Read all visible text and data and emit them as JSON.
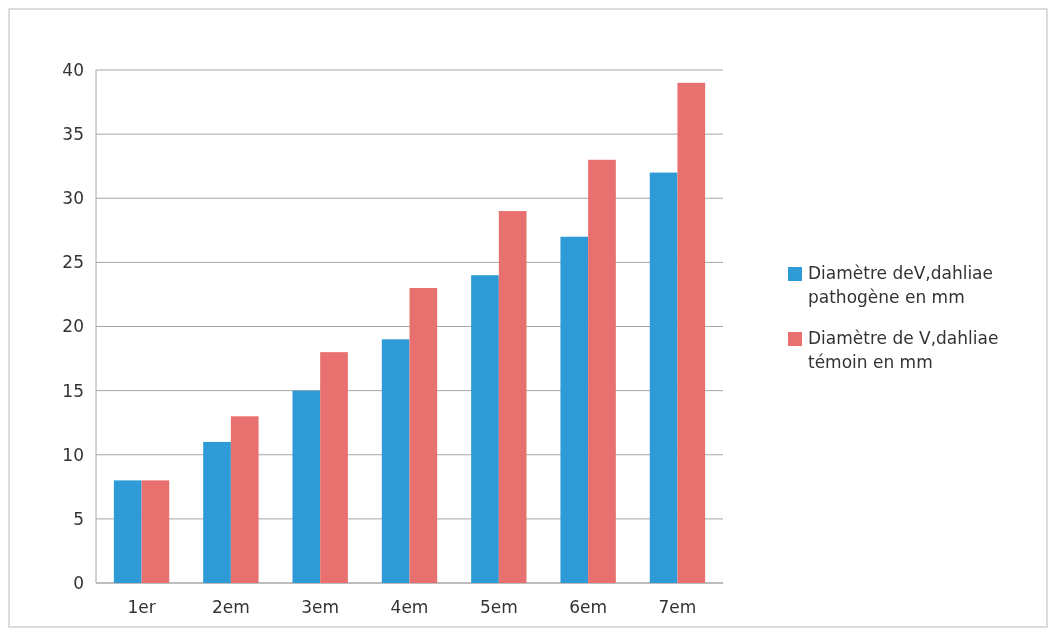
{
  "chart_data": {
    "type": "bar",
    "categories": [
      "1er",
      "2em",
      "3em",
      "4em",
      "5em",
      "6em",
      "7em"
    ],
    "series": [
      {
        "name": "Diamètre deV,dahliae pathogène en mm",
        "color": "#2e9bd6",
        "values": [
          8,
          11,
          15,
          19,
          24,
          27,
          32
        ]
      },
      {
        "name": "Diamètre de V,dahliae témoin en mm",
        "color": "#e8706e",
        "values": [
          8,
          13,
          18,
          23,
          29,
          33,
          39
        ]
      }
    ],
    "ylim": [
      0,
      40
    ],
    "yticks": [
      0,
      5,
      10,
      15,
      20,
      25,
      30,
      35,
      40
    ],
    "grid": "y",
    "legend": "right"
  }
}
